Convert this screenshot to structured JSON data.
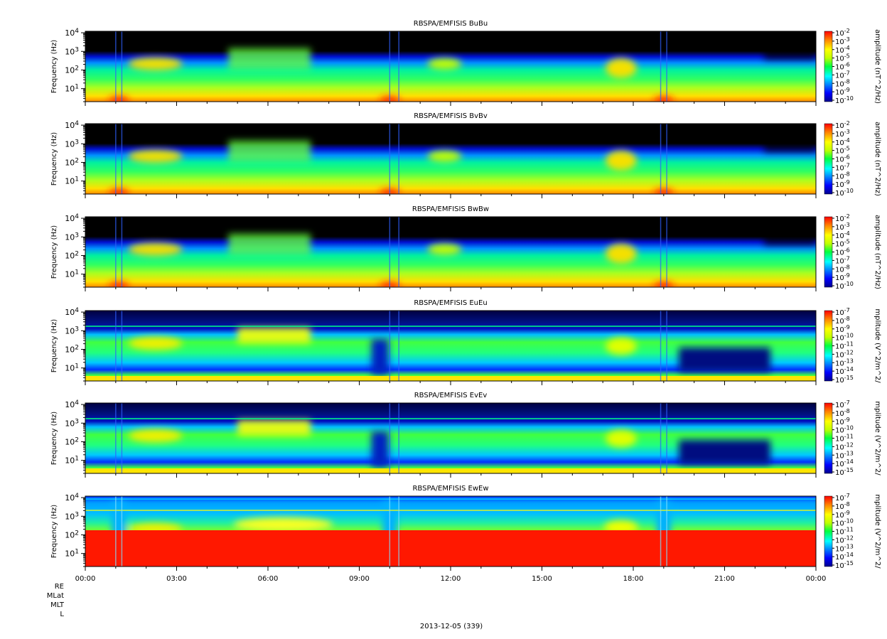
{
  "chart_data": [
    {
      "type": "heatmap",
      "title": "RBSPA/EMFISIS  BuBu",
      "ylabel": "Frequency (Hz)",
      "yscale": "log",
      "ylim": [
        2,
        12000
      ],
      "yticks": [
        10,
        100,
        1000,
        10000
      ],
      "colorbar_label": "amplitude (nT^2/Hz)",
      "colorbar_ticks": [
        "10-2",
        "10-3",
        "10-4",
        "10-5",
        "10-6",
        "10-7",
        "10-8",
        "10-9",
        "10-10"
      ],
      "colorbar_exp": [
        -2,
        -3,
        -4,
        -5,
        -6,
        -7,
        -8,
        -9,
        -10
      ]
    },
    {
      "type": "heatmap",
      "title": "RBSPA/EMFISIS  BvBv",
      "ylabel": "Frequency (Hz)",
      "yscale": "log",
      "ylim": [
        2,
        12000
      ],
      "yticks": [
        10,
        100,
        1000,
        10000
      ],
      "colorbar_label": "amplitude (nT^2/Hz)",
      "colorbar_ticks": [
        "10-2",
        "10-3",
        "10-4",
        "10-5",
        "10-6",
        "10-7",
        "10-8",
        "10-9",
        "10-10"
      ],
      "colorbar_exp": [
        -2,
        -3,
        -4,
        -5,
        -6,
        -7,
        -8,
        -9,
        -10
      ]
    },
    {
      "type": "heatmap",
      "title": "RBSPA/EMFISIS  BwBw",
      "ylabel": "Frequency (Hz)",
      "yscale": "log",
      "ylim": [
        2,
        12000
      ],
      "yticks": [
        10,
        100,
        1000,
        10000
      ],
      "colorbar_label": "amplitude (nT^2/Hz)",
      "colorbar_ticks": [
        "10-2",
        "10-3",
        "10-4",
        "10-5",
        "10-6",
        "10-7",
        "10-8",
        "10-9",
        "10-10"
      ],
      "colorbar_exp": [
        -2,
        -3,
        -4,
        -5,
        -6,
        -7,
        -8,
        -9,
        -10
      ]
    },
    {
      "type": "heatmap",
      "title": "RBSPA/EMFISIS  EuEu",
      "ylabel": "Frequency (Hz)",
      "yscale": "log",
      "ylim": [
        2,
        12000
      ],
      "yticks": [
        10,
        100,
        1000,
        10000
      ],
      "colorbar_label": "mplitude (V^2/m^2/",
      "colorbar_ticks": [
        "10-7",
        "10-8",
        "10-9",
        "10-10",
        "10-11",
        "10-12",
        "10-13",
        "10-14",
        "10-15"
      ],
      "colorbar_exp": [
        -7,
        -8,
        -9,
        -10,
        -11,
        -12,
        -13,
        -14,
        -15
      ]
    },
    {
      "type": "heatmap",
      "title": "RBSPA/EMFISIS  EvEv",
      "ylabel": "Frequency (Hz)",
      "yscale": "log",
      "ylim": [
        2,
        12000
      ],
      "yticks": [
        10,
        100,
        1000,
        10000
      ],
      "colorbar_label": "mplitude (V^2/m^2/",
      "colorbar_ticks": [
        "10-7",
        "10-8",
        "10-9",
        "10-10",
        "10-11",
        "10-12",
        "10-13",
        "10-14",
        "10-15"
      ],
      "colorbar_exp": [
        -7,
        -8,
        -9,
        -10,
        -11,
        -12,
        -13,
        -14,
        -15
      ]
    },
    {
      "type": "heatmap",
      "title": "RBSPA/EMFISIS  EwEw",
      "ylabel": "Frequency (Hz)",
      "yscale": "log",
      "ylim": [
        2,
        12000
      ],
      "yticks": [
        10,
        100,
        1000,
        10000
      ],
      "colorbar_label": "mplitude (V^2/m^2/",
      "colorbar_ticks": [
        "10-7",
        "10-8",
        "10-9",
        "10-10",
        "10-11",
        "10-12",
        "10-13",
        "10-14",
        "10-15"
      ],
      "colorbar_exp": [
        -7,
        -8,
        -9,
        -10,
        -11,
        -12,
        -13,
        -14,
        -15
      ]
    }
  ],
  "x_axis": {
    "tick_labels": [
      "00:00",
      "03:00",
      "06:00",
      "09:00",
      "12:00",
      "15:00",
      "18:00",
      "21:00",
      "00:00"
    ],
    "hours": [
      0,
      3,
      6,
      9,
      12,
      15,
      18,
      21,
      24
    ]
  },
  "ephemeris_labels": [
    "RE",
    "MLat",
    "MLT",
    "L"
  ],
  "date_label": "2013-12-05 (339)",
  "colors": {
    "background": "#000000",
    "accent": "#ff0000"
  }
}
